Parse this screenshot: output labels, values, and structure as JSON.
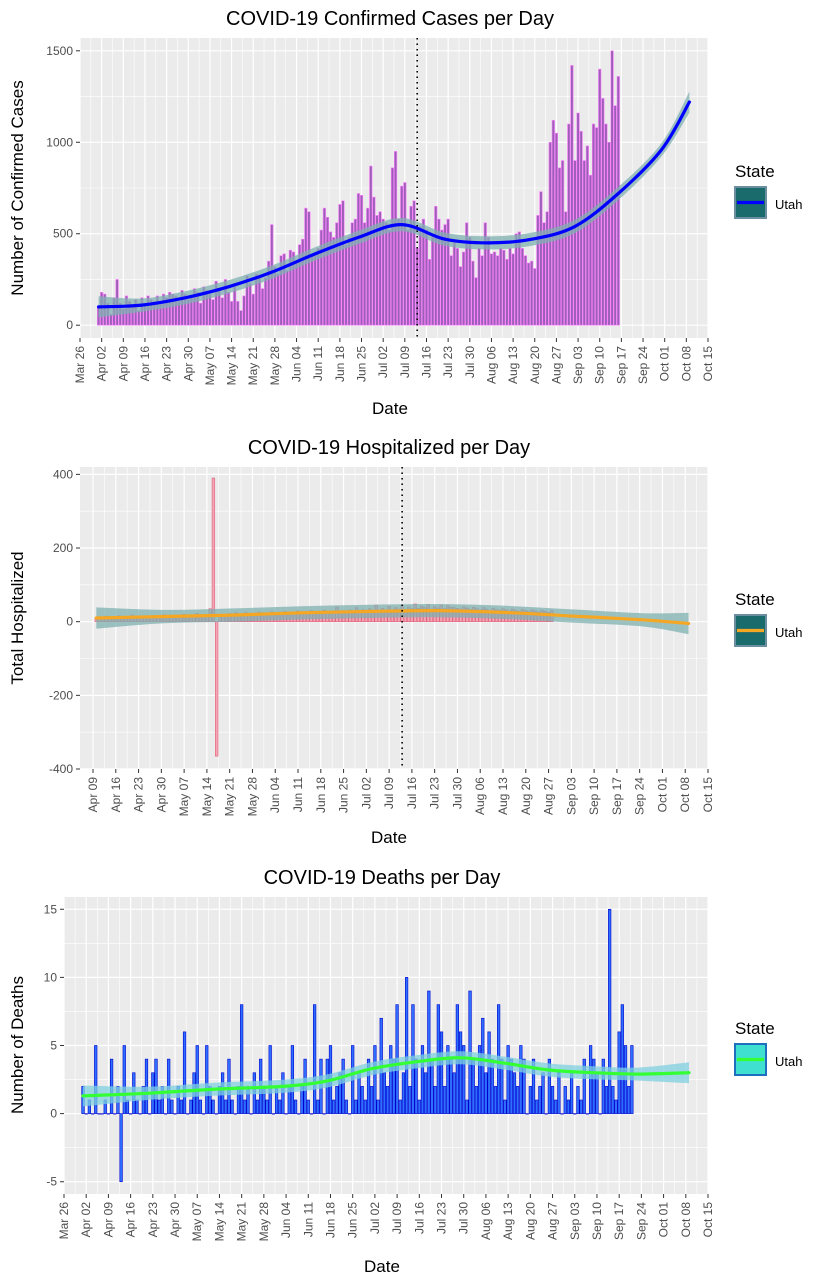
{
  "chart_data": [
    {
      "type": "bar",
      "title": "COVID-19 Confirmed Cases per Day",
      "xlabel": "Date",
      "ylabel": "Number of Confirmed Cases",
      "x_start": "2020-03-26",
      "x_end": "2020-10-15",
      "ylim": [
        -70,
        1570
      ],
      "y_ticks": [
        0,
        500,
        1000,
        1500
      ],
      "x_tick_labels": [
        "Mar 26",
        "Apr 02",
        "Apr 09",
        "Apr 16",
        "Apr 23",
        "Apr 30",
        "May 07",
        "May 14",
        "May 21",
        "May 28",
        "Jun 04",
        "Jun 11",
        "Jun 18",
        "Jun 25",
        "Jul 02",
        "Jul 09",
        "Jul 16",
        "Jul 23",
        "Jul 30",
        "Aug 06",
        "Aug 13",
        "Aug 20",
        "Aug 27",
        "Sep 03",
        "Sep 10",
        "Sep 17",
        "Sep 24",
        "Oct 01",
        "Oct 08",
        "Oct 15"
      ],
      "vline_date": "2020-07-13",
      "legend_title": "State",
      "series": [
        {
          "name": "Utah",
          "first_date": "2020-04-01",
          "values": [
            100,
            180,
            170,
            120,
            60,
            150,
            250,
            120,
            90,
            160,
            130,
            100,
            140,
            80,
            150,
            120,
            160,
            140,
            130,
            160,
            120,
            170,
            150,
            180,
            170,
            160,
            130,
            190,
            170,
            140,
            160,
            200,
            180,
            120,
            210,
            190,
            170,
            140,
            240,
            200,
            150,
            250,
            180,
            130,
            210,
            130,
            80,
            160,
            270,
            230,
            170,
            280,
            260,
            200,
            260,
            350,
            550,
            320,
            280,
            380,
            390,
            300,
            410,
            400,
            350,
            440,
            470,
            640,
            620,
            380,
            400,
            420,
            520,
            640,
            590,
            510,
            480,
            560,
            660,
            680,
            440,
            480,
            560,
            580,
            720,
            710,
            560,
            640,
            870,
            700,
            600,
            620,
            580,
            560,
            520,
            860,
            950,
            580,
            760,
            780,
            520,
            650,
            680,
            420,
            540,
            580,
            520,
            360,
            480,
            650,
            580,
            520,
            550,
            580,
            380,
            450,
            420,
            320,
            400,
            560,
            480,
            350,
            260,
            420,
            380,
            560,
            480,
            390,
            400,
            380,
            420,
            410,
            360,
            420,
            390,
            500,
            510,
            420,
            380,
            340,
            350,
            310,
            600,
            730,
            560,
            620,
            1000,
            1120,
            1050,
            860,
            900,
            620,
            1100,
            1420,
            900,
            1160,
            1060,
            900,
            980,
            820,
            1100,
            1080,
            1400,
            1240,
            1100,
            1000,
            1500,
            1200,
            1360
          ]
        }
      ],
      "trend": {
        "name": "Utah",
        "dates": [
          "2020-04-01",
          "2020-04-15",
          "2020-04-29",
          "2020-05-13",
          "2020-05-27",
          "2020-06-10",
          "2020-06-24",
          "2020-07-08",
          "2020-07-22",
          "2020-08-05",
          "2020-08-19",
          "2020-09-02",
          "2020-09-16",
          "2020-09-30",
          "2020-10-09"
        ],
        "values": [
          100,
          110,
          150,
          210,
          290,
          390,
          480,
          550,
          470,
          450,
          470,
          540,
          720,
          960,
          1220
        ]
      },
      "colors": {
        "bar_fill": "#9b5fb8",
        "bar_stroke": "#ff80ff",
        "line": "#0000ff",
        "band": "#7fb0b0",
        "legend_key_fill": "#1a6b6b",
        "legend_key_border": "#6b8fa0"
      }
    },
    {
      "type": "bar",
      "title": "COVID-19 Hospitalized per Day",
      "xlabel": "Date",
      "ylabel": "Total Hospitalized",
      "x_start": "2020-04-05",
      "x_end": "2020-10-15",
      "ylim": [
        -400,
        420
      ],
      "y_ticks": [
        -400,
        -200,
        0,
        200,
        400
      ],
      "x_tick_labels": [
        "Apr 09",
        "Apr 16",
        "Apr 23",
        "Apr 30",
        "May 07",
        "May 14",
        "May 21",
        "May 28",
        "Jun 04",
        "Jun 11",
        "Jun 18",
        "Jun 25",
        "Jul 02",
        "Jul 09",
        "Jul 16",
        "Jul 23",
        "Jul 30",
        "Aug 06",
        "Aug 13",
        "Aug 20",
        "Aug 27",
        "Sep 03",
        "Sep 10",
        "Sep 17",
        "Sep 24",
        "Oct 01",
        "Oct 08",
        "Oct 15"
      ],
      "vline_date": "2020-07-13",
      "legend_title": "State",
      "series": [
        {
          "name": "Utah",
          "first_date": "2020-04-10",
          "values": [
            8,
            12,
            10,
            15,
            9,
            13,
            11,
            16,
            12,
            14,
            10,
            18,
            13,
            15,
            12,
            16,
            14,
            11,
            17,
            15,
            13,
            19,
            16,
            14,
            18,
            15,
            17,
            20,
            16,
            14,
            18,
            22,
            17,
            15,
            19,
            35,
            390,
            -365,
            18,
            20,
            16,
            22,
            19,
            24,
            18,
            21,
            25,
            20,
            23,
            19,
            26,
            22,
            24,
            20,
            27,
            23,
            25,
            21,
            28,
            24,
            26,
            22,
            29,
            25,
            27,
            23,
            30,
            26,
            28,
            24,
            31,
            27,
            29,
            25,
            40,
            28,
            30,
            26,
            32,
            28,
            38,
            27,
            33,
            29,
            35,
            30,
            45,
            32,
            36,
            31,
            42,
            30,
            38,
            34,
            44,
            33,
            40,
            35,
            48,
            36,
            42,
            38,
            46,
            34,
            41,
            37,
            45,
            35,
            43,
            39,
            38,
            36,
            34,
            40,
            37,
            33,
            39,
            35,
            32,
            38,
            34,
            30,
            36,
            33,
            31,
            35,
            32,
            29,
            34,
            30,
            28,
            33,
            30,
            27,
            32,
            29,
            26,
            31,
            28,
            25,
            30
          ]
        }
      ],
      "trend": {
        "name": "Utah",
        "dates": [
          "2020-04-10",
          "2020-05-01",
          "2020-05-22",
          "2020-06-12",
          "2020-07-03",
          "2020-07-24",
          "2020-08-14",
          "2020-09-04",
          "2020-09-25",
          "2020-10-09"
        ],
        "values": [
          10,
          14,
          18,
          24,
          28,
          30,
          25,
          15,
          5,
          -5
        ]
      },
      "colors": {
        "bar_fill": "#f4a6b6",
        "bar_stroke": "#e0607a",
        "line": "#f5a623",
        "band": "#7fb0b0",
        "legend_key_fill": "#1a6b6b",
        "legend_key_border": "#6b8fa0"
      }
    },
    {
      "type": "bar",
      "title": "COVID-19 Deaths per Day",
      "xlabel": "Date",
      "ylabel": "Number of Deaths",
      "x_start": "2020-03-26",
      "x_end": "2020-10-15",
      "ylim": [
        -5.9,
        15.9
      ],
      "y_ticks": [
        -5,
        0,
        5,
        10,
        15
      ],
      "x_tick_labels": [
        "Mar 26",
        "Apr 02",
        "Apr 09",
        "Apr 16",
        "Apr 23",
        "Apr 30",
        "May 07",
        "May 14",
        "May 21",
        "May 28",
        "Jun 04",
        "Jun 11",
        "Jun 18",
        "Jun 25",
        "Jul 02",
        "Jul 09",
        "Jul 16",
        "Jul 23",
        "Jul 30",
        "Aug 06",
        "Aug 13",
        "Aug 20",
        "Aug 27",
        "Sep 03",
        "Sep 10",
        "Sep 17",
        "Sep 24",
        "Oct 01",
        "Oct 08",
        "Oct 15"
      ],
      "legend_title": "State",
      "series": [
        {
          "name": "Utah",
          "first_date": "2020-04-01",
          "values": [
            2,
            0,
            1,
            0,
            5,
            0,
            0,
            1,
            0,
            4,
            0,
            2,
            -5,
            5,
            1,
            0,
            3,
            1,
            0,
            2,
            4,
            0,
            3,
            4,
            1,
            2,
            0,
            4,
            1,
            0,
            2,
            1,
            6,
            0,
            1,
            3,
            5,
            1,
            0,
            5,
            2,
            1,
            0,
            2,
            3,
            1,
            4,
            1,
            0,
            2,
            8,
            1,
            2,
            0,
            3,
            1,
            4,
            2,
            1,
            5,
            0,
            2,
            1,
            3,
            0,
            2,
            5,
            1,
            0,
            2,
            4,
            1,
            0,
            8,
            1,
            4,
            0,
            4,
            5,
            1,
            2,
            3,
            4,
            1,
            0,
            5,
            1,
            3,
            2,
            1,
            4,
            2,
            5,
            1,
            7,
            3,
            2,
            5,
            4,
            8,
            1,
            3,
            10,
            2,
            8,
            4,
            1,
            5,
            3,
            9,
            4,
            2,
            8,
            6,
            2,
            5,
            4,
            3,
            8,
            6,
            5,
            1,
            9,
            4,
            2,
            5,
            7,
            3,
            6,
            4,
            2,
            8,
            4,
            1,
            5,
            4,
            3,
            2,
            5,
            4,
            0,
            2,
            4,
            1,
            2,
            3,
            0,
            4,
            2,
            1,
            3,
            0,
            2,
            1,
            3,
            0,
            2,
            1,
            4,
            0,
            5,
            4,
            3,
            0,
            4,
            2,
            15,
            2,
            1,
            6,
            8,
            5,
            2,
            5
          ]
        }
      ],
      "trend": {
        "name": "Utah",
        "dates": [
          "2020-04-01",
          "2020-04-22",
          "2020-05-13",
          "2020-06-03",
          "2020-06-17",
          "2020-07-01",
          "2020-07-15",
          "2020-07-29",
          "2020-08-12",
          "2020-08-26",
          "2020-09-09",
          "2020-09-23",
          "2020-10-09"
        ],
        "values": [
          1.3,
          1.5,
          1.8,
          2.0,
          2.4,
          3.3,
          3.8,
          4.1,
          3.7,
          3.2,
          3.0,
          2.9,
          3.0
        ]
      },
      "colors": {
        "bar_fill": "#2f6fff",
        "bar_stroke": "#0000cc",
        "line": "#33ff33",
        "band": "#7fd0e0",
        "legend_key_fill": "#40e0d0",
        "legend_key_border": "#1f6fbf"
      }
    }
  ]
}
